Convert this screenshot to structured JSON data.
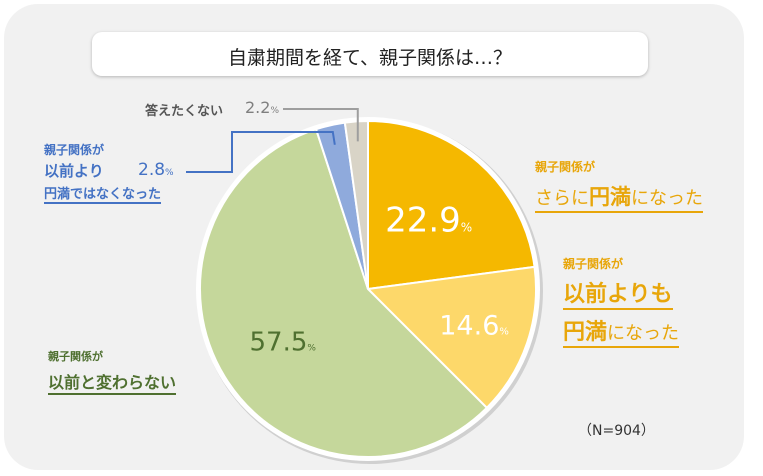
{
  "title": "自粛期間を経て、親子関係は…？",
  "note": "（N=904）",
  "colors": {
    "more_harmonious": "#f5b800",
    "more_than_before": "#fdd86a",
    "unchanged": "#c5d79b",
    "less_harmonious": "#8faadc",
    "no_answer": "#d9d4c7",
    "text_orange": "#e8a60a",
    "text_blue": "#4472c4",
    "text_green": "#4f7030",
    "text_gray": "#7f7f7f"
  },
  "labels": {
    "more_harmonious": {
      "prefix": "親子関係が",
      "line2_a": "さらに",
      "line2_b": "円満",
      "line2_c": "になった"
    },
    "more_than_before": {
      "prefix": "親子関係が",
      "line2": "以前よりも",
      "line3_a": "円満",
      "line3_b": "になった"
    },
    "unchanged": {
      "prefix": "親子関係が",
      "line2": "以前と変わらない"
    },
    "less_harmonious": {
      "prefix": "親子関係が",
      "line2": "以前より",
      "line3": "円満ではなくなった"
    },
    "no_answer": {
      "text": "答えたくない"
    }
  },
  "chart_data": {
    "type": "pie",
    "title": "自粛期間を経て、親子関係は…？",
    "unit": "%",
    "slices": [
      {
        "label": "親子関係がさらに円満になった",
        "value": 22.9
      },
      {
        "label": "親子関係が以前よりも円満になった",
        "value": 14.6
      },
      {
        "label": "親子関係が以前と変わらない",
        "value": 57.5
      },
      {
        "label": "親子関係が以前より円満ではなくなった",
        "value": 2.8
      },
      {
        "label": "答えたくない",
        "value": 2.2
      }
    ],
    "value_labels": [
      "22.9",
      "14.6",
      "57.5",
      "2.8",
      "2.2"
    ]
  }
}
